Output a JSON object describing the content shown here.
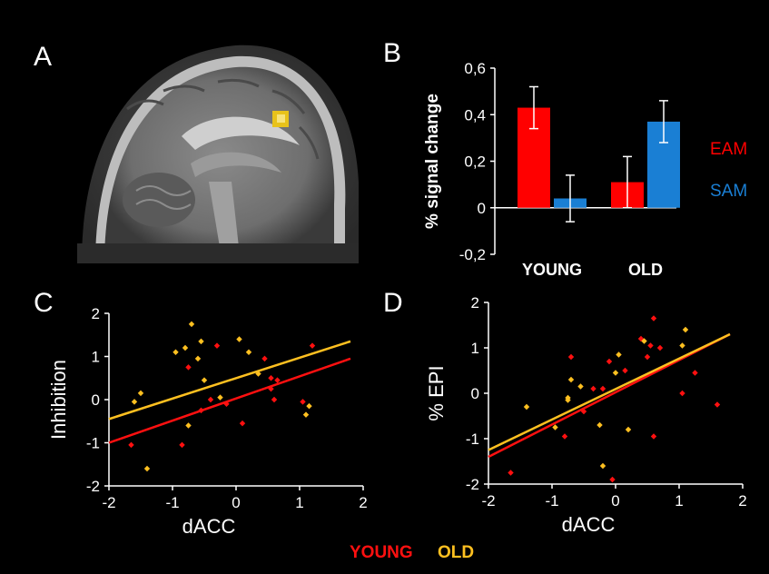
{
  "panels": {
    "A": "A",
    "B": "B",
    "C": "C",
    "D": "D"
  },
  "colors": {
    "young": "#ff1010",
    "old": "#ffc020",
    "eam": "#ff0000",
    "sam": "#1a7fd4"
  },
  "legend": {
    "young": "YOUNG",
    "old": "OLD"
  },
  "chart_data": [
    {
      "id": "B",
      "type": "bar",
      "categories": [
        "YOUNG",
        "OLD"
      ],
      "series": [
        {
          "name": "EAM",
          "values": [
            0.43,
            0.11
          ],
          "errors": [
            0.09,
            0.11
          ]
        },
        {
          "name": "SAM",
          "values": [
            0.04,
            0.37
          ],
          "errors": [
            0.1,
            0.09
          ]
        }
      ],
      "ylabel": "% signal change",
      "ylim": [
        -0.2,
        0.6
      ],
      "yticks": [
        "-0,2",
        "0",
        "0,2",
        "0,4",
        "0,6"
      ],
      "legend_placement": "right"
    },
    {
      "id": "C",
      "type": "scatter",
      "xlabel": "dACC",
      "ylabel": "Inhibition",
      "xlim": [
        -2,
        2
      ],
      "ylim": [
        -2,
        2
      ],
      "xticks": [
        "-2",
        "-1",
        "0",
        "1",
        "2"
      ],
      "yticks": [
        "-2",
        "-1",
        "0",
        "1",
        "2"
      ],
      "series": [
        {
          "name": "YOUNG",
          "points": [
            [
              -1.65,
              -1.05
            ],
            [
              -0.85,
              -1.05
            ],
            [
              -0.75,
              0.75
            ],
            [
              -0.55,
              -0.25
            ],
            [
              -0.4,
              0.0
            ],
            [
              -0.3,
              1.25
            ],
            [
              -0.15,
              -0.1
            ],
            [
              0.1,
              -0.55
            ],
            [
              0.45,
              0.95
            ],
            [
              0.55,
              0.25
            ],
            [
              0.55,
              0.5
            ],
            [
              0.6,
              0.0
            ],
            [
              0.65,
              0.45
            ],
            [
              1.2,
              1.25
            ],
            [
              1.05,
              -0.05
            ]
          ],
          "fit": [
            [
              -2,
              -1.0
            ],
            [
              1.8,
              0.95
            ]
          ]
        },
        {
          "name": "OLD",
          "points": [
            [
              -1.6,
              -0.05
            ],
            [
              -1.5,
              0.15
            ],
            [
              -1.4,
              -1.6
            ],
            [
              -0.95,
              1.1
            ],
            [
              -0.8,
              1.2
            ],
            [
              -0.7,
              1.75
            ],
            [
              -0.55,
              1.35
            ],
            [
              -0.75,
              -0.6
            ],
            [
              -0.6,
              0.95
            ],
            [
              -0.5,
              0.45
            ],
            [
              -0.25,
              0.05
            ],
            [
              0.05,
              1.4
            ],
            [
              0.2,
              1.1
            ],
            [
              0.35,
              0.6
            ],
            [
              1.1,
              -0.35
            ],
            [
              1.15,
              -0.15
            ]
          ],
          "fit": [
            [
              -2,
              -0.45
            ],
            [
              1.8,
              1.35
            ]
          ]
        }
      ]
    },
    {
      "id": "D",
      "type": "scatter",
      "xlabel": "dACC",
      "ylabel": "% EPI",
      "xlim": [
        -2,
        2
      ],
      "ylim": [
        -2,
        2
      ],
      "xticks": [
        "-2",
        "-1",
        "0",
        "1",
        "2"
      ],
      "yticks": [
        "-2",
        "-1",
        "0",
        "1",
        "2"
      ],
      "series": [
        {
          "name": "YOUNG",
          "points": [
            [
              -1.65,
              -1.75
            ],
            [
              -0.8,
              -0.95
            ],
            [
              -0.7,
              0.8
            ],
            [
              -0.5,
              -0.4
            ],
            [
              -0.35,
              0.1
            ],
            [
              -0.2,
              0.1
            ],
            [
              -0.1,
              0.7
            ],
            [
              -0.05,
              -1.9
            ],
            [
              0.15,
              0.5
            ],
            [
              0.4,
              1.2
            ],
            [
              0.5,
              0.8
            ],
            [
              0.55,
              1.05
            ],
            [
              0.6,
              1.65
            ],
            [
              0.6,
              -0.95
            ],
            [
              0.7,
              1.0
            ],
            [
              1.05,
              0.0
            ],
            [
              1.25,
              0.45
            ],
            [
              1.6,
              -0.25
            ]
          ],
          "fit": [
            [
              -2,
              -1.4
            ],
            [
              1.8,
              1.3
            ]
          ]
        },
        {
          "name": "OLD",
          "points": [
            [
              -1.4,
              -0.3
            ],
            [
              -0.95,
              -0.75
            ],
            [
              -0.75,
              -0.1
            ],
            [
              -0.7,
              0.3
            ],
            [
              -0.75,
              -0.15
            ],
            [
              -0.55,
              0.15
            ],
            [
              -0.25,
              -0.7
            ],
            [
              -0.2,
              -1.6
            ],
            [
              0.0,
              0.45
            ],
            [
              0.05,
              0.85
            ],
            [
              0.2,
              -0.8
            ],
            [
              0.45,
              1.15
            ],
            [
              1.05,
              1.05
            ],
            [
              1.1,
              1.4
            ]
          ],
          "fit": [
            [
              -2,
              -1.25
            ],
            [
              1.8,
              1.3
            ]
          ]
        }
      ]
    }
  ]
}
